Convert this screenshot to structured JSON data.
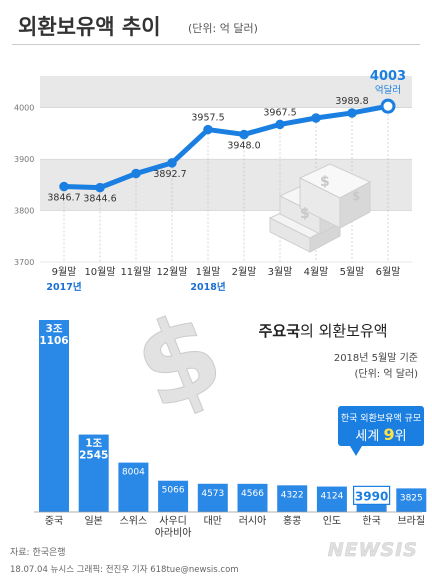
{
  "header": {
    "title": "외환보유액 추이",
    "unit": "(단위: 억 달러)"
  },
  "line_chart": {
    "last_unit": "억달러"
  },
  "bar_chart": {
    "title_bold": "주요국",
    "title_rest": "의 외환보유액",
    "date_note": "2018년 5월말 기준",
    "unit": "(단위: 억 달러)",
    "callout_line1": "한국 외환보유액 규모",
    "callout_line2_prefix": "세계 ",
    "callout_rank": "9",
    "callout_suffix": "위"
  },
  "footer": {
    "source": "자료: 한국은행",
    "credit": "18.07.04 뉴시스 그래픽: 전진우 기자 618tue@newsis.com",
    "logo": "NEWSIS"
  },
  "colors": {
    "accent": "#1a7fe0",
    "bar": "#2a88e6",
    "band": "#e8e8e8",
    "text": "#333333",
    "year_label": "#1a6fd0"
  },
  "chart_data": [
    {
      "type": "line",
      "title": "외환보유액 추이",
      "ylabel": "",
      "ylim": [
        3700,
        4050
      ],
      "yticks": [
        3700,
        3800,
        3900,
        4000
      ],
      "grid": "alternating bands",
      "categories": [
        "9월말",
        "10월말",
        "11월말",
        "12월말",
        "1월말",
        "2월말",
        "3월말",
        "4월말",
        "5월말",
        "6월말"
      ],
      "year_labels": [
        {
          "category": "9월말",
          "text": "2017년"
        },
        {
          "category": "1월말",
          "text": "2018년"
        }
      ],
      "values": [
        3846.7,
        3844.6,
        3872.0,
        3892.7,
        3957.5,
        3948.0,
        3967.5,
        3980.0,
        3989.8,
        4003
      ],
      "value_labels": [
        "3846.7",
        "3844.6",
        "",
        "3892.7",
        "3957.5",
        "3948.0",
        "3967.5",
        "",
        "3989.8",
        "4003"
      ]
    },
    {
      "type": "bar",
      "title": "주요국의 외환보유액",
      "categories": [
        "중국",
        "일본",
        "스위스",
        "사우디 아라비아",
        "대만",
        "러시아",
        "홍콩",
        "인도",
        "한국",
        "브라질"
      ],
      "values": [
        31106,
        12545,
        8004,
        5066,
        4573,
        4566,
        4322,
        4124,
        3990,
        3825
      ],
      "value_labels": [
        "3조 1106",
        "1조 2545",
        "8004",
        "5066",
        "4573",
        "4566",
        "4322",
        "4124",
        "3990",
        "3825"
      ],
      "highlight": "한국"
    }
  ]
}
